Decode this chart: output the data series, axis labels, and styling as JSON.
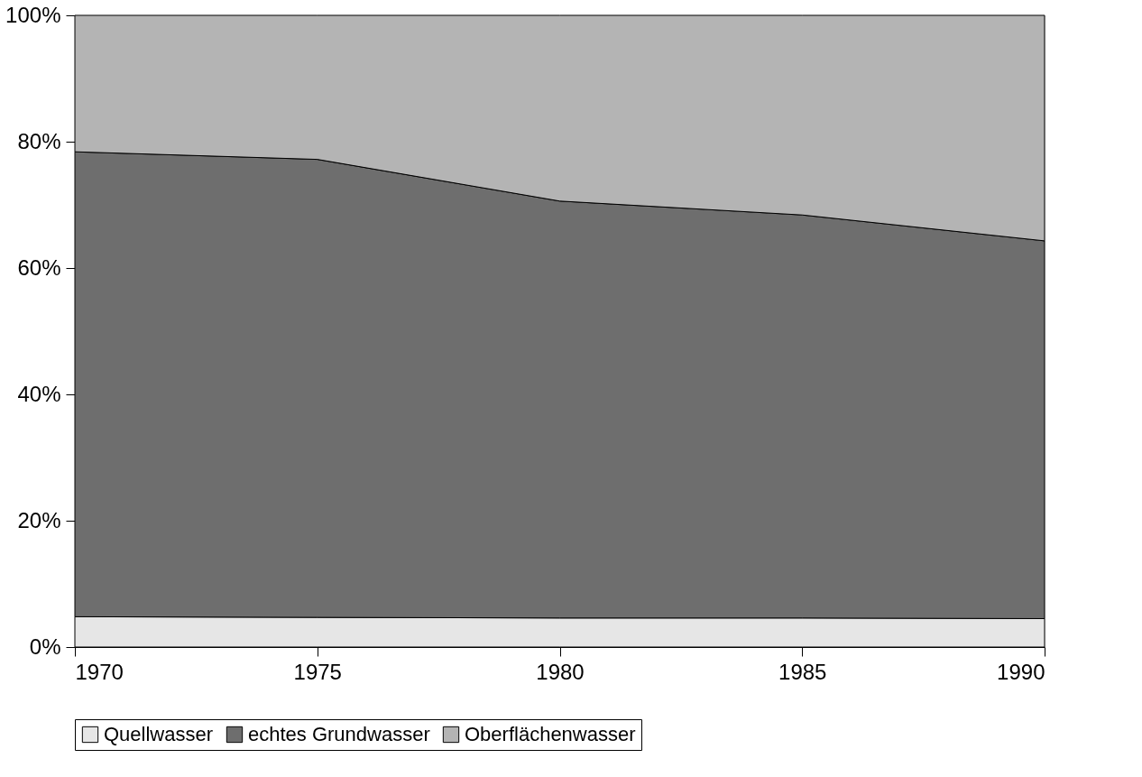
{
  "chart_data": {
    "type": "area",
    "stacked": true,
    "x": [
      1970,
      1975,
      1980,
      1985,
      1990
    ],
    "series": [
      {
        "name": "Quellwasser",
        "color": "#e6e6e6",
        "values": [
          4.8,
          4.7,
          4.6,
          4.6,
          4.5
        ]
      },
      {
        "name": "echtes Grundwasser",
        "color": "#6e6e6e",
        "values": [
          73.6,
          72.5,
          66.0,
          63.8,
          59.8
        ]
      },
      {
        "name": "Oberflächenwasser",
        "color": "#b4b4b4",
        "values": [
          21.6,
          22.8,
          29.4,
          31.6,
          35.7
        ]
      }
    ],
    "xlim": [
      1970,
      1990
    ],
    "xticks": [
      1970,
      1975,
      1980,
      1985,
      1990
    ],
    "ylim": [
      0,
      100
    ],
    "yticks": [
      {
        "value": 0,
        "label": "0%"
      },
      {
        "value": 20,
        "label": "20%"
      },
      {
        "value": 40,
        "label": "40%"
      },
      {
        "value": 60,
        "label": "60%"
      },
      {
        "value": 80,
        "label": "80%"
      },
      {
        "value": 100,
        "label": "100%"
      }
    ],
    "legend": "bottom"
  }
}
